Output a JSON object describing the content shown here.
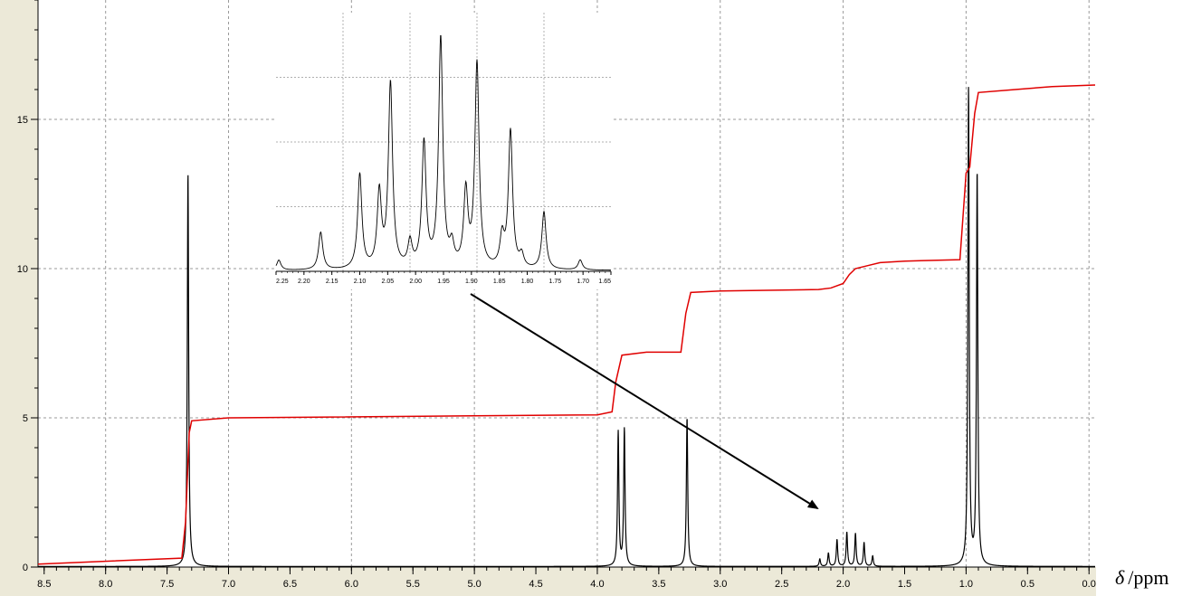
{
  "chart_data": {
    "type": "line",
    "x_axis": {
      "label_symbol": "δ",
      "label_unit": "/ppm",
      "range": [
        8.55,
        -0.05
      ],
      "reversed": true,
      "ticks": [
        "8.5",
        "8.0",
        "7.5",
        "7.0",
        "6.5",
        "6.0",
        "5.5",
        "5.0",
        "4.5",
        "4.0",
        "3.5",
        "3.0",
        "2.5",
        "2.0",
        "1.5",
        "1.0",
        "0.5",
        "0.0"
      ]
    },
    "y_axis": {
      "label": "",
      "range": [
        0,
        19
      ],
      "ticks": [
        "0",
        "5",
        "10",
        "15"
      ]
    },
    "grid": true,
    "series": [
      {
        "kind": "spectrum",
        "color": "#000000",
        "peaks": [
          {
            "shift": 7.33,
            "height": 13.2
          },
          {
            "shift": 3.83,
            "height": 4.5
          },
          {
            "shift": 3.78,
            "height": 4.6
          },
          {
            "shift": 3.27,
            "height": 5.0
          },
          {
            "shift": 2.19,
            "height": 0.25
          },
          {
            "shift": 2.12,
            "height": 0.45
          },
          {
            "shift": 2.05,
            "height": 0.9
          },
          {
            "shift": 1.97,
            "height": 1.15
          },
          {
            "shift": 1.9,
            "height": 1.1
          },
          {
            "shift": 1.83,
            "height": 0.8
          },
          {
            "shift": 1.76,
            "height": 0.35
          },
          {
            "shift": 0.98,
            "height": 16.0
          },
          {
            "shift": 0.91,
            "height": 13.2
          }
        ]
      },
      {
        "kind": "integral",
        "color": "#e00000",
        "x": [
          8.55,
          7.38,
          7.35,
          7.32,
          7.3,
          7.0,
          4.0,
          3.88,
          3.85,
          3.8,
          3.6,
          3.32,
          3.28,
          3.24,
          3.0,
          2.2,
          2.1,
          2.0,
          1.95,
          1.9,
          1.8,
          1.7,
          1.5,
          1.05,
          1.0,
          0.97,
          0.93,
          0.9,
          0.6,
          0.3,
          -0.05
        ],
        "y": [
          0.1,
          0.3,
          1.5,
          4.5,
          4.9,
          5.0,
          5.1,
          5.2,
          6.2,
          7.1,
          7.2,
          7.2,
          8.5,
          9.2,
          9.25,
          9.3,
          9.35,
          9.5,
          9.8,
          10.0,
          10.1,
          10.2,
          10.25,
          10.3,
          13.2,
          13.4,
          15.2,
          15.9,
          16.0,
          16.1,
          16.15
        ]
      }
    ],
    "inset": {
      "x_range": [
        2.25,
        1.65
      ],
      "ticks": [
        "2.25",
        "2.20",
        "2.15",
        "2.10",
        "2.05",
        "2.00",
        "1.95",
        "1.90",
        "1.85",
        "1.80",
        "1.75",
        "1.70",
        "1.65"
      ],
      "peaks": [
        {
          "shift": 2.245,
          "height": 0.04
        },
        {
          "shift": 2.17,
          "height": 0.15
        },
        {
          "shift": 2.1,
          "height": 0.38
        },
        {
          "shift": 2.065,
          "height": 0.3
        },
        {
          "shift": 2.045,
          "height": 0.74
        },
        {
          "shift": 2.01,
          "height": 0.1
        },
        {
          "shift": 1.985,
          "height": 0.5
        },
        {
          "shift": 1.955,
          "height": 0.92
        },
        {
          "shift": 1.935,
          "height": 0.08
        },
        {
          "shift": 1.91,
          "height": 0.3
        },
        {
          "shift": 1.89,
          "height": 0.82
        },
        {
          "shift": 1.83,
          "height": 0.55
        },
        {
          "shift": 1.845,
          "height": 0.12
        },
        {
          "shift": 1.81,
          "height": 0.05
        },
        {
          "shift": 1.77,
          "height": 0.23
        },
        {
          "shift": 1.705,
          "height": 0.04
        }
      ]
    }
  }
}
